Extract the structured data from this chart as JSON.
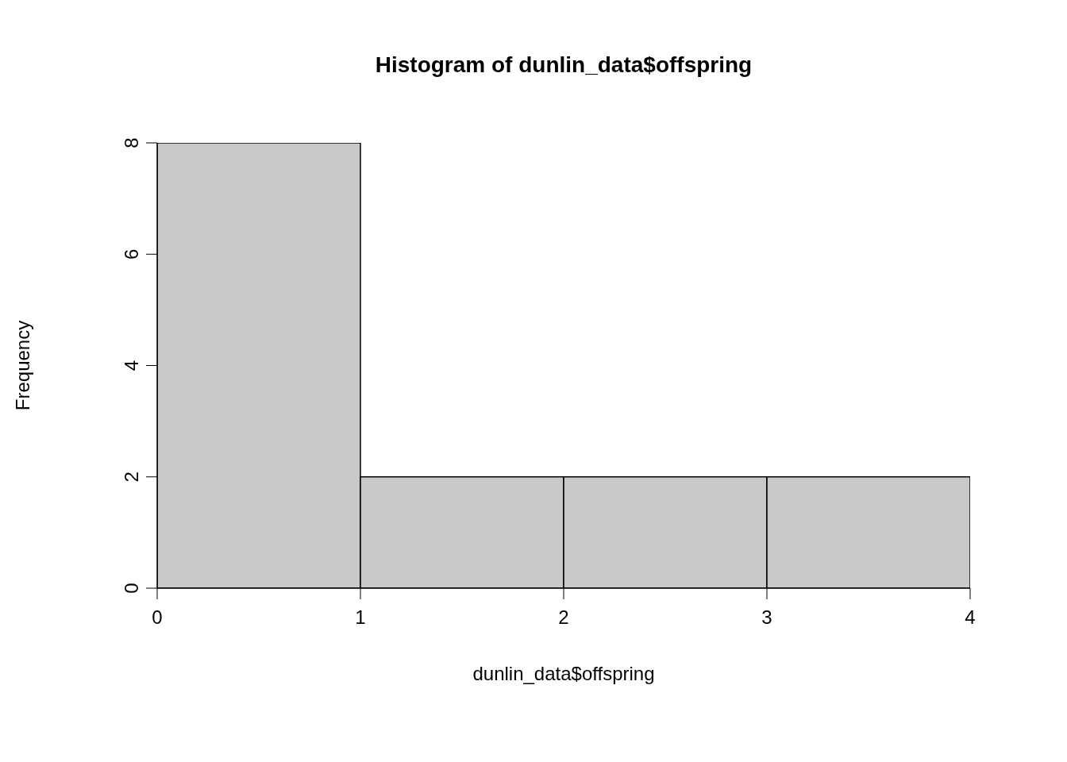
{
  "chart_data": {
    "type": "histogram",
    "title": "Histogram of dunlin_data$offspring",
    "xlabel": "dunlin_data$offspring",
    "ylabel": "Frequency",
    "bins": [
      0,
      1,
      2,
      3,
      4
    ],
    "values": [
      8,
      2,
      2,
      2
    ],
    "color": "#c9c9c9",
    "xlim": [
      0,
      4
    ],
    "xticks": [
      0,
      1,
      2,
      3,
      4
    ],
    "ylim": [
      0,
      8
    ],
    "yticks": [
      0,
      2,
      4,
      6,
      8
    ],
    "grid": false,
    "legend": false
  }
}
